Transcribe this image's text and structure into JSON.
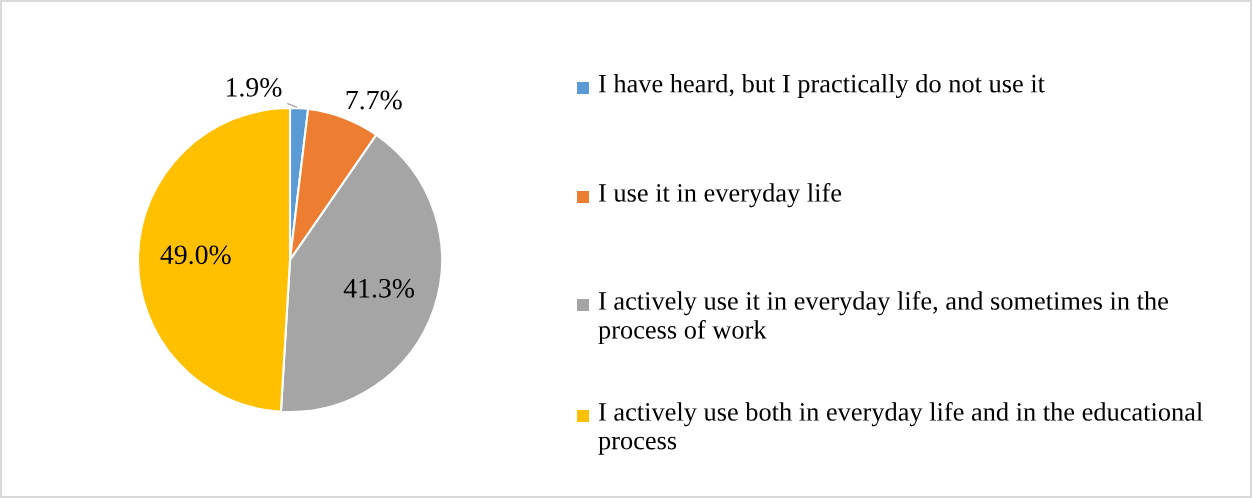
{
  "chart_data": {
    "type": "pie",
    "categories": [
      "I have heard, but I practically do not use it",
      "I use it in everyday life",
      "I actively use it in everyday life, and sometimes in the process of work",
      "I actively use both in everyday life and in the educational process"
    ],
    "values": [
      1.9,
      7.7,
      41.3,
      49.0
    ],
    "colors": [
      "#5b9bd5",
      "#ed7d31",
      "#a5a5a5",
      "#ffc000"
    ],
    "value_labels": [
      "1.9%",
      "7.7%",
      "41.3%",
      "49.0%"
    ],
    "legend": "right"
  }
}
